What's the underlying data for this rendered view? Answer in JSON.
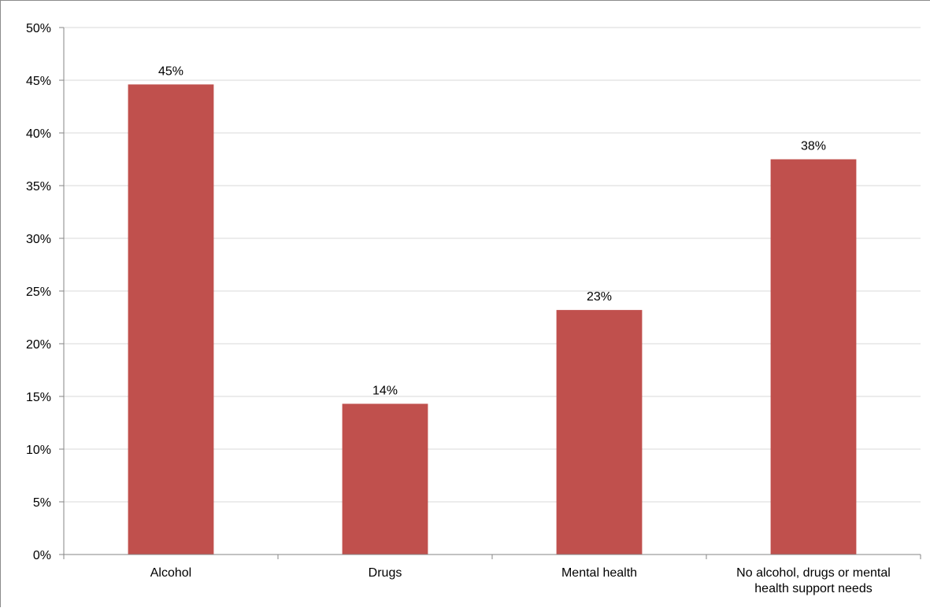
{
  "chart_data": {
    "type": "bar",
    "categories": [
      [
        "Alcohol"
      ],
      [
        "Drugs"
      ],
      [
        "Mental health"
      ],
      [
        "No alcohol, drugs or mental",
        "health support needs"
      ]
    ],
    "values": [
      44.6,
      14.3,
      23.2,
      37.5
    ],
    "data_labels": [
      "45%",
      "14%",
      "23%",
      "38%"
    ],
    "ylim": [
      0,
      50
    ],
    "yticks": [
      0,
      5,
      10,
      15,
      20,
      25,
      30,
      35,
      40,
      45,
      50
    ],
    "ytick_labels": [
      "0%",
      "5%",
      "10%",
      "15%",
      "20%",
      "25%",
      "30%",
      "35%",
      "40%",
      "45%",
      "50%"
    ],
    "grid": true,
    "legend": "none",
    "title": "",
    "xlabel": "",
    "ylabel": "",
    "colors": {
      "bar": "#c0504d",
      "grid": "#d9d9d9",
      "axis": "#868686"
    }
  }
}
